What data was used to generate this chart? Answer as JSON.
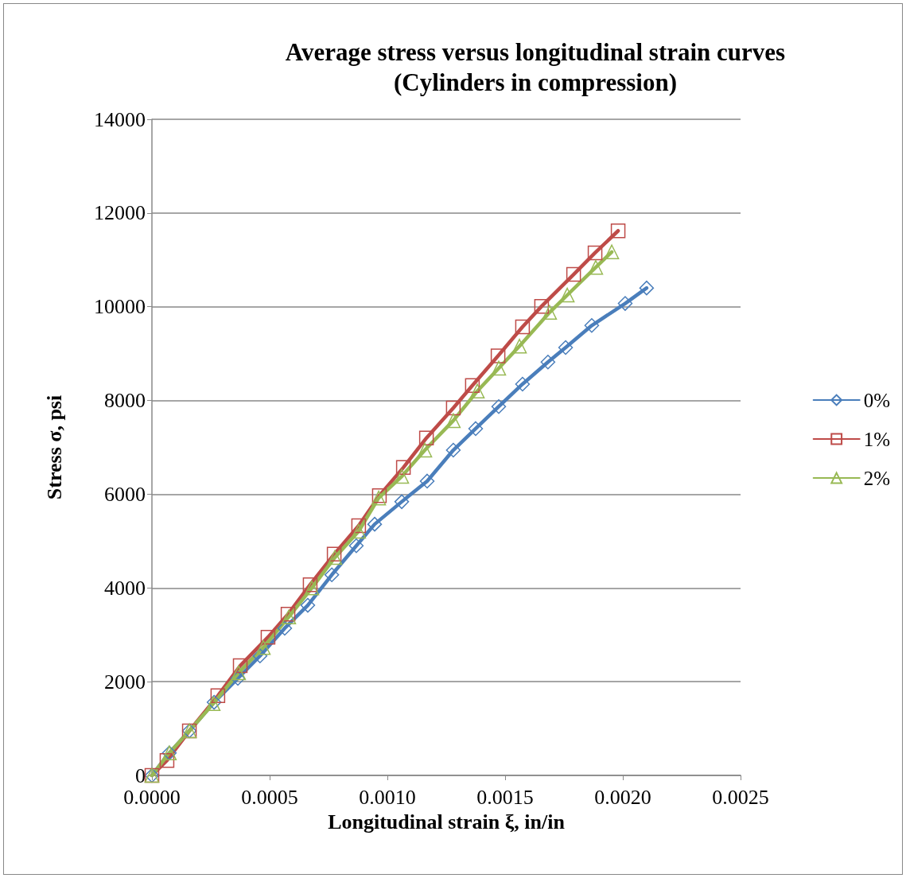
{
  "chart_data": {
    "type": "line",
    "title": "Average stress versus longitudinal strain curves\n(Cylinders in compression)",
    "xlabel": "Longitudinal strain ξ, in/in",
    "ylabel": "Stress σ, psi",
    "xlim": [
      0,
      0.0025
    ],
    "xticks": [
      {
        "value": 0,
        "label": "0.0000"
      },
      {
        "value": 0.0005,
        "label": "0.0005"
      },
      {
        "value": 0.001,
        "label": "0.0010"
      },
      {
        "value": 0.0015,
        "label": "0.0015"
      },
      {
        "value": 0.002,
        "label": "0.0020"
      },
      {
        "value": 0.0025,
        "label": "0.0025"
      }
    ],
    "ylim": [
      0,
      14000
    ],
    "yticks": [
      0,
      2000,
      4000,
      6000,
      8000,
      10000,
      12000,
      14000
    ],
    "grid": "y",
    "legend": "right",
    "line_style": "solid",
    "series": [
      {
        "name": "0%",
        "color": "#4a7ebb",
        "marker": "diamond",
        "x": [
          0,
          7.4e-05,
          0.000159,
          0.000264,
          0.000365,
          0.000459,
          0.000564,
          0.000662,
          0.000764,
          0.000868,
          0.000946,
          0.001061,
          0.001169,
          0.00128,
          0.001375,
          0.001473,
          0.001574,
          0.001682,
          0.001757,
          0.001868,
          0.00201,
          0.002101
        ],
        "values": [
          0,
          480,
          950,
          1560,
          2070,
          2550,
          3140,
          3630,
          4280,
          4900,
          5360,
          5840,
          6280,
          6940,
          7400,
          7870,
          8350,
          8820,
          9130,
          9600,
          10070,
          10400
        ]
      },
      {
        "name": "1%",
        "color": "#be4b48",
        "marker": "square",
        "x": [
          0,
          6.4e-05,
          0.000159,
          0.00028,
          0.000375,
          0.000493,
          0.000578,
          0.000672,
          0.000774,
          0.000878,
          0.000966,
          0.001068,
          0.001166,
          0.00128,
          0.001361,
          0.00147,
          0.001574,
          0.001655,
          0.001791,
          0.001882,
          0.00198
        ],
        "values": [
          0,
          320,
          950,
          1700,
          2340,
          2950,
          3440,
          4070,
          4720,
          5330,
          5970,
          6570,
          7200,
          7840,
          8320,
          8950,
          9570,
          10010,
          10690,
          11150,
          11620
        ]
      },
      {
        "name": "2%",
        "color": "#98b954",
        "marker": "triangle",
        "x": [
          0,
          7.4e-05,
          0.000159,
          0.00026,
          0.000368,
          0.000473,
          0.000581,
          0.000679,
          0.000777,
          0.000878,
          0.000963,
          0.001061,
          0.001159,
          0.00128,
          0.001382,
          0.001473,
          0.001561,
          0.001689,
          0.001764,
          0.001885,
          0.001953
        ],
        "values": [
          0,
          480,
          950,
          1530,
          2190,
          2730,
          3380,
          4000,
          4650,
          5210,
          5920,
          6380,
          6940,
          7570,
          8200,
          8690,
          9160,
          9880,
          10250,
          10840,
          11170
        ]
      }
    ]
  }
}
